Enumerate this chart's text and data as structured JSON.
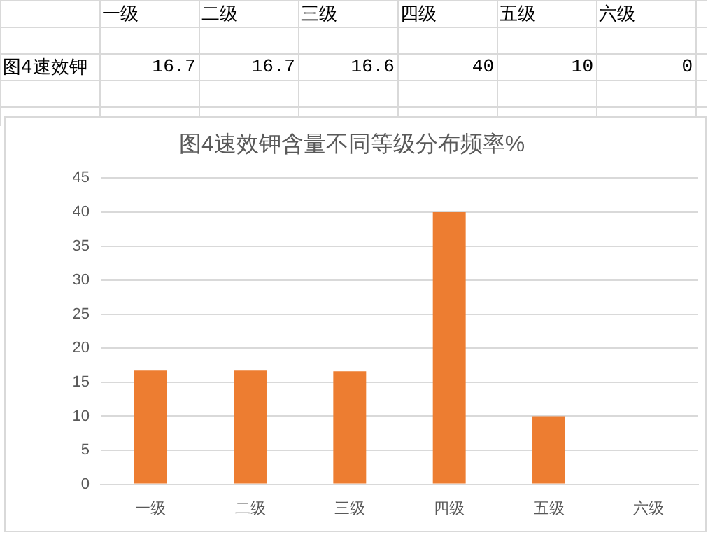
{
  "chart_data": {
    "type": "bar",
    "title": "图4速效钾含量不同等级分布频率%",
    "categories": [
      "一级",
      "二级",
      "三级",
      "四级",
      "五级",
      "六级"
    ],
    "series": [
      {
        "name": "图4速效钾",
        "color": "#ed7d31",
        "values": [
          16.7,
          16.7,
          16.6,
          40,
          10,
          0
        ],
        "value_labels": [
          "16.7",
          "16.7",
          "16.6",
          "40",
          "10",
          "0"
        ]
      }
    ],
    "ylim": [
      0,
      45
    ],
    "yticks": [
      0,
      5,
      10,
      15,
      20,
      25,
      30,
      35,
      40,
      45
    ],
    "grid": "y",
    "legend": false
  }
}
